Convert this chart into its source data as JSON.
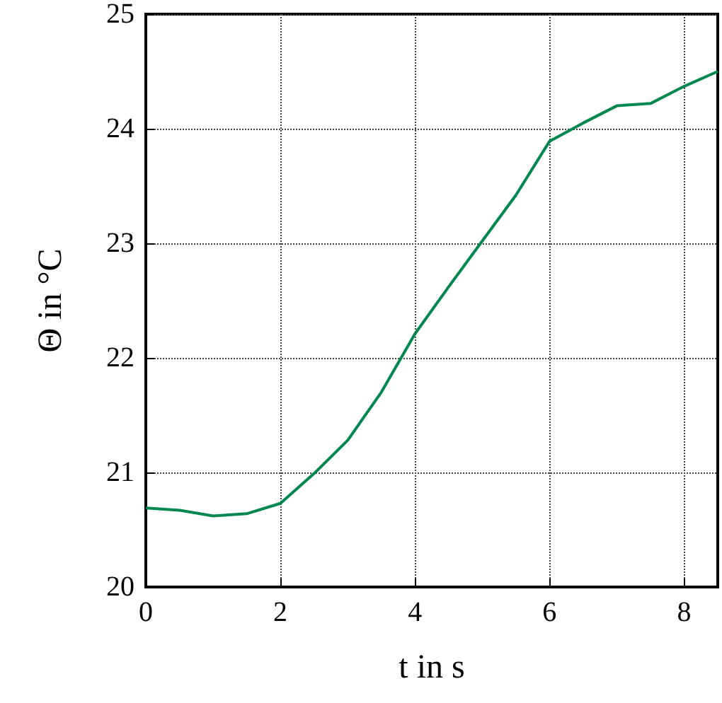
{
  "chart_data": {
    "type": "line",
    "xlabel": "t in s",
    "ylabel": "Θ in °C",
    "x": [
      0,
      0.5,
      1,
      1.5,
      2,
      2.5,
      3,
      3.5,
      4,
      4.5,
      5,
      5.5,
      6,
      6.5,
      7,
      7.5,
      8,
      8.5
    ],
    "series": [
      {
        "color": "#00874f",
        "values": [
          20.69,
          20.67,
          20.62,
          20.64,
          20.73,
          20.99,
          21.28,
          21.7,
          22.21,
          22.62,
          23.02,
          23.42,
          23.89,
          24.05,
          24.2,
          24.22,
          24.37,
          24.5
        ]
      }
    ],
    "xlim": [
      0,
      8.5
    ],
    "xticks": [
      0,
      2,
      4,
      6,
      8
    ],
    "ylim": [
      20,
      25
    ],
    "yticks": [
      20,
      21,
      22,
      23,
      24,
      25
    ],
    "grid": true
  }
}
